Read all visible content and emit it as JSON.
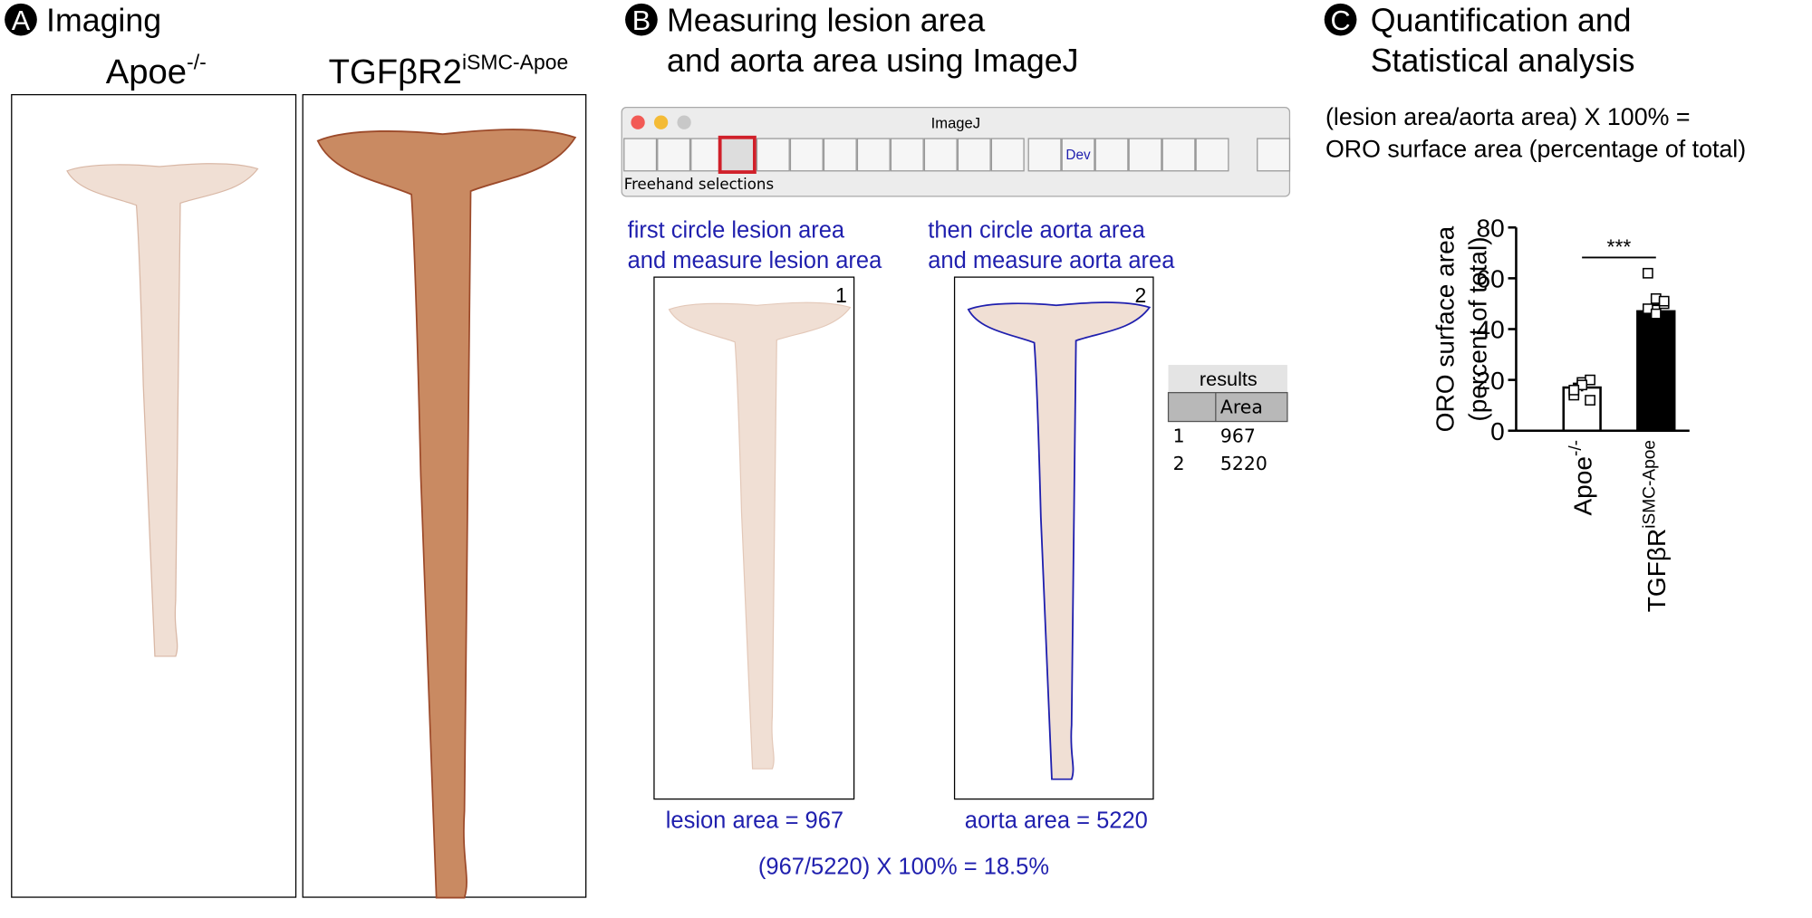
{
  "panel_a": {
    "label": "A",
    "title": "Imaging",
    "groups": [
      {
        "name": "Apoe",
        "sup": "-/-"
      },
      {
        "name": "TGFβR2",
        "sup": "iSMC-Apoe"
      }
    ]
  },
  "panel_b": {
    "label": "B",
    "title": [
      "Measuring lesion area",
      "and aorta area using ImageJ"
    ],
    "window": {
      "title": "ImageJ",
      "tool": "Dev",
      "status": "Freehand selections"
    },
    "captions": [
      [
        "first circle lesion area",
        "and measure lesion area"
      ],
      [
        "then circle aorta area",
        "and measure aorta area"
      ]
    ],
    "image_numbers": [
      "1",
      "2"
    ],
    "results": {
      "title": "results",
      "header": "Area",
      "rows": [
        [
          "1",
          "967"
        ],
        [
          "2",
          "5220"
        ]
      ]
    },
    "lesion": "lesion area = 967",
    "aorta": "aorta area = 5220",
    "formula": "(967/5220) X 100% = 18.5%"
  },
  "panel_c": {
    "label": "C",
    "title": [
      "Quantification and",
      "Statistical analysis"
    ],
    "formula": [
      "(lesion area/aorta area) X 100% =",
      "ORO surface area (percentage of total)"
    ]
  },
  "chart_data": {
    "type": "bar",
    "y_label": [
      "ORO surface area",
      "(percent of total)"
    ],
    "categories": [
      "Apoe",
      "TGFβR"
    ],
    "category_superscripts": [
      "-/-",
      "iSMC-Apoe"
    ],
    "values": [
      17,
      47
    ],
    "errors": [
      1.5,
      2.5
    ],
    "colors": [
      "#ffffff",
      "#000000"
    ],
    "points": [
      [
        15,
        19,
        20,
        14,
        18,
        12,
        16
      ],
      [
        62,
        52,
        50,
        48,
        46,
        51
      ]
    ],
    "significance": "***",
    "ylim": [
      0,
      80
    ],
    "yticks": [
      0,
      20,
      40,
      60,
      80
    ]
  }
}
